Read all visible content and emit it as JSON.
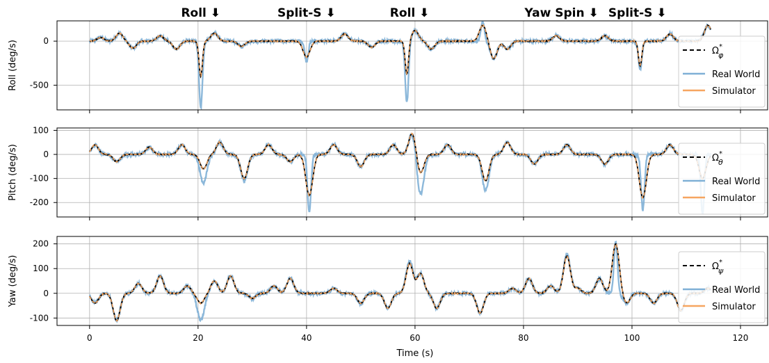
{
  "chart_data": {
    "type": "line",
    "x_label": "Time (s)",
    "x_ticks": [
      0,
      20,
      40,
      60,
      80,
      100,
      120
    ],
    "xlim": [
      -6,
      125
    ],
    "annotations": [
      {
        "label": "Roll ⬇",
        "x": 20.5
      },
      {
        "label": "Split-S ⬇",
        "x": 40
      },
      {
        "label": "Roll ⬇",
        "x": 59
      },
      {
        "label": "Yaw Spin ⬇",
        "x": 87
      },
      {
        "label": "Split-S ⬇",
        "x": 101
      }
    ],
    "colors": {
      "reference": "#000000",
      "real_world": "#7fb0d6",
      "simulator": "#f6a560",
      "grid": "#b0b0b0"
    },
    "panels": [
      {
        "ylabel": "Roll (deg/s)",
        "ylim": [
          -780,
          230
        ],
        "y_ticks": [
          0,
          -500
        ],
        "legend": [
          "Ω*_φ",
          "Real World",
          "Simulator"
        ],
        "legend_position": "right",
        "events": [
          {
            "x": 2,
            "y": 40
          },
          {
            "x": 5.5,
            "y": 90
          },
          {
            "x": 8,
            "y": -80
          },
          {
            "x": 13,
            "y": 60
          },
          {
            "x": 16,
            "y": -90
          },
          {
            "x": 20.5,
            "y": -400,
            "real": -760
          },
          {
            "x": 23,
            "y": 90
          },
          {
            "x": 28,
            "y": -60
          },
          {
            "x": 40,
            "y": -180,
            "real": -230
          },
          {
            "x": 47,
            "y": 80
          },
          {
            "x": 52,
            "y": -70
          },
          {
            "x": 58.5,
            "y": -380,
            "real": -700
          },
          {
            "x": 60,
            "y": 120
          },
          {
            "x": 63,
            "y": -90
          },
          {
            "x": 72.5,
            "y": 180,
            "real": 220
          },
          {
            "x": 74.5,
            "y": -200
          },
          {
            "x": 77,
            "y": -90
          },
          {
            "x": 86,
            "y": 60
          },
          {
            "x": 95,
            "y": 60
          },
          {
            "x": 101.5,
            "y": -280,
            "real": -320
          },
          {
            "x": 107,
            "y": 80
          },
          {
            "x": 114,
            "y": 180
          }
        ]
      },
      {
        "ylabel": "Pitch (deg/s)",
        "ylim": [
          -260,
          110
        ],
        "y_ticks": [
          100,
          0,
          -100,
          -200
        ],
        "legend": [
          "Ω*_θ",
          "Real World",
          "Simulator"
        ],
        "legend_position": "right",
        "events": [
          {
            "x": 1,
            "y": 40
          },
          {
            "x": 5,
            "y": -30
          },
          {
            "x": 11,
            "y": 30
          },
          {
            "x": 17,
            "y": 40
          },
          {
            "x": 21,
            "y": -60,
            "real": -120
          },
          {
            "x": 24,
            "y": 50
          },
          {
            "x": 28.5,
            "y": -100,
            "real": -110
          },
          {
            "x": 33,
            "y": 40
          },
          {
            "x": 37,
            "y": -30
          },
          {
            "x": 40.5,
            "y": -170,
            "real": -240
          },
          {
            "x": 45,
            "y": 40
          },
          {
            "x": 50,
            "y": -50
          },
          {
            "x": 56,
            "y": 40
          },
          {
            "x": 59.5,
            "y": 90,
            "real": 90
          },
          {
            "x": 61,
            "y": -80,
            "real": -170
          },
          {
            "x": 66,
            "y": 40
          },
          {
            "x": 73,
            "y": -110,
            "real": -150
          },
          {
            "x": 77,
            "y": 50
          },
          {
            "x": 82,
            "y": -40
          },
          {
            "x": 88,
            "y": 40
          },
          {
            "x": 95,
            "y": -40
          },
          {
            "x": 102,
            "y": -180,
            "real": -230
          },
          {
            "x": 107,
            "y": 40
          },
          {
            "x": 113,
            "y": -100,
            "real": -250
          },
          {
            "x": 118,
            "y": 40
          }
        ]
      },
      {
        "ylabel": "Yaw (deg/s)",
        "ylim": [
          -130,
          230
        ],
        "y_ticks": [
          200,
          100,
          0,
          -100
        ],
        "legend": [
          "Ω*_ψ",
          "Real World",
          "Simulator"
        ],
        "legend_position": "right",
        "events": [
          {
            "x": 1,
            "y": -40
          },
          {
            "x": 5,
            "y": -110
          },
          {
            "x": 9,
            "y": 40
          },
          {
            "x": 13,
            "y": 70
          },
          {
            "x": 18,
            "y": 30
          },
          {
            "x": 20.5,
            "y": -40,
            "real": -110
          },
          {
            "x": 23,
            "y": 50
          },
          {
            "x": 26,
            "y": 70
          },
          {
            "x": 30,
            "y": -20
          },
          {
            "x": 34,
            "y": 30
          },
          {
            "x": 37,
            "y": 60
          },
          {
            "x": 45,
            "y": 20
          },
          {
            "x": 50,
            "y": -40
          },
          {
            "x": 55,
            "y": -60
          },
          {
            "x": 59,
            "y": 120,
            "real": 130
          },
          {
            "x": 61,
            "y": 80
          },
          {
            "x": 64,
            "y": -60
          },
          {
            "x": 72,
            "y": -80
          },
          {
            "x": 78,
            "y": 20
          },
          {
            "x": 81,
            "y": 60
          },
          {
            "x": 85,
            "y": 30
          },
          {
            "x": 88,
            "y": 150,
            "real": 160
          },
          {
            "x": 90,
            "y": 20
          },
          {
            "x": 94,
            "y": 60
          },
          {
            "x": 97,
            "y": 200,
            "real": 210
          },
          {
            "x": 99,
            "y": -40
          },
          {
            "x": 104,
            "y": -40
          },
          {
            "x": 109,
            "y": -70
          },
          {
            "x": 114,
            "y": 20
          }
        ]
      }
    ]
  }
}
